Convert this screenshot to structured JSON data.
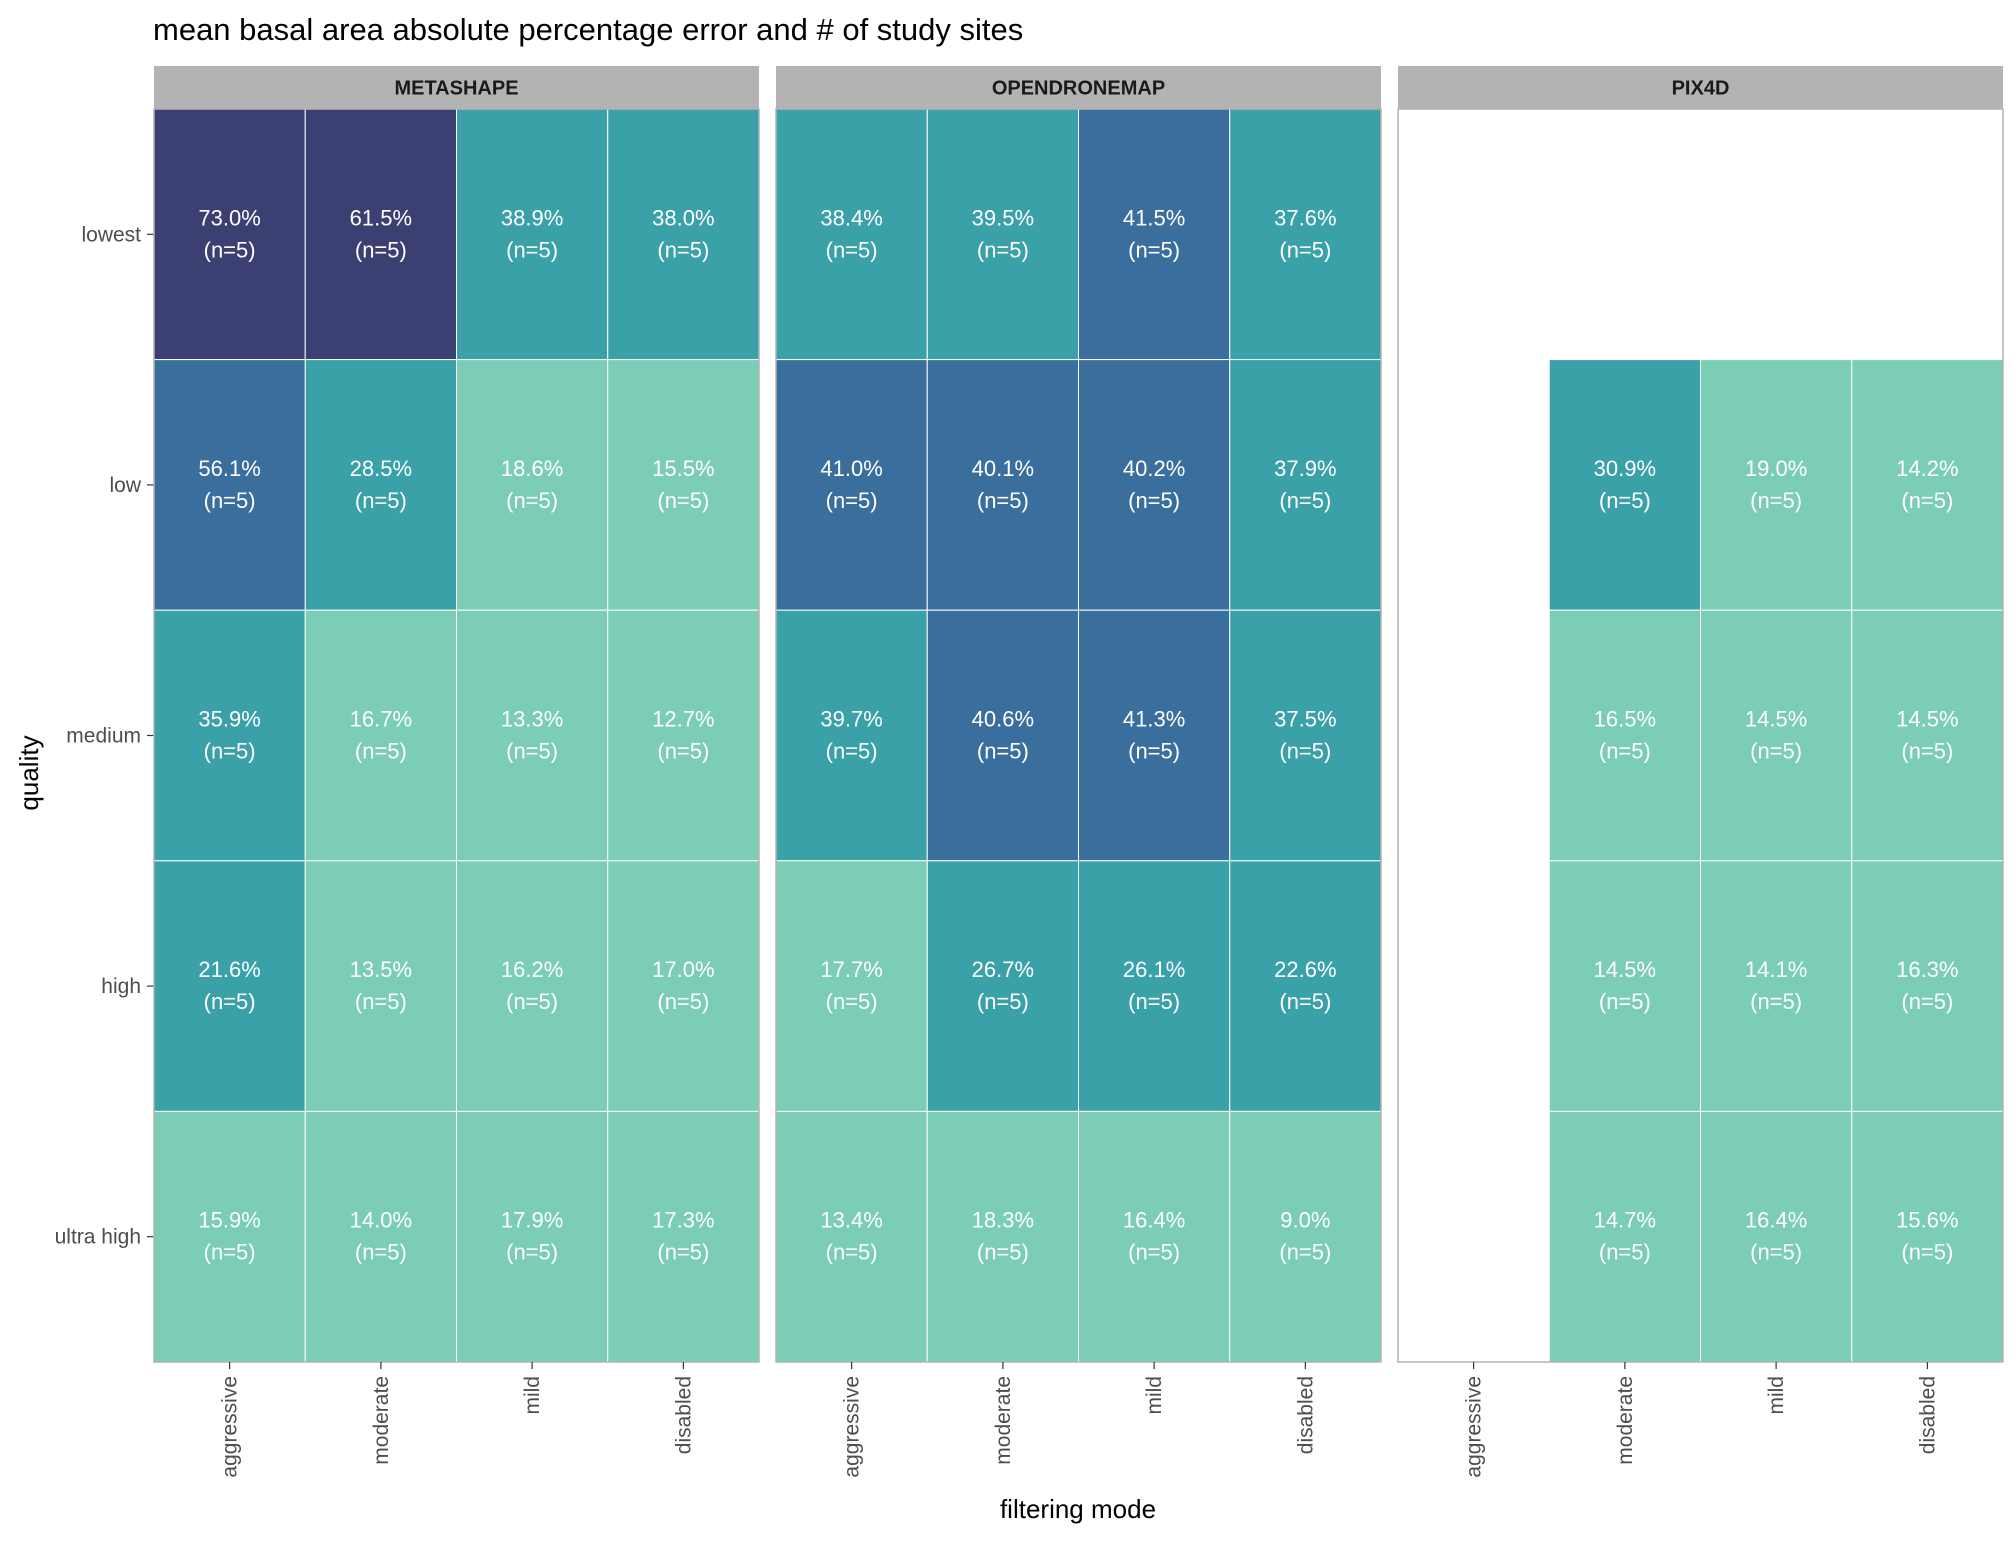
{
  "chart_data": {
    "type": "heatmap",
    "title": "mean basal area absolute percentage error and # of study sites",
    "xlabel": "filtering mode",
    "ylabel": "quality",
    "x_categories": [
      "aggressive",
      "moderate",
      "mild",
      "disabled"
    ],
    "y_categories": [
      "lowest",
      "low",
      "medium",
      "high",
      "ultra high"
    ],
    "legend": "none",
    "colors": {
      "level_1": "#3c3f72",
      "level_2": "#3a6e9c",
      "level_3": "#3ba1a9",
      "level_4": "#7bcdb5",
      "empty": "#ffffff",
      "panel_border": "#b3b3b3",
      "strip_fill": "#b3b3b3",
      "cell_text": "#ffffff",
      "axis_text": "#4d4d4d"
    },
    "facets": [
      {
        "name": "METASHAPE",
        "cells": [
          {
            "quality": "lowest",
            "filter": "aggressive",
            "value": 73.0,
            "label": "73.0%",
            "n": "(n=5)",
            "level": 1
          },
          {
            "quality": "lowest",
            "filter": "moderate",
            "value": 61.5,
            "label": "61.5%",
            "n": "(n=5)",
            "level": 1
          },
          {
            "quality": "lowest",
            "filter": "mild",
            "value": 38.9,
            "label": "38.9%",
            "n": "(n=5)",
            "level": 3
          },
          {
            "quality": "lowest",
            "filter": "disabled",
            "value": 38.0,
            "label": "38.0%",
            "n": "(n=5)",
            "level": 3
          },
          {
            "quality": "low",
            "filter": "aggressive",
            "value": 56.1,
            "label": "56.1%",
            "n": "(n=5)",
            "level": 2
          },
          {
            "quality": "low",
            "filter": "moderate",
            "value": 28.5,
            "label": "28.5%",
            "n": "(n=5)",
            "level": 3
          },
          {
            "quality": "low",
            "filter": "mild",
            "value": 18.6,
            "label": "18.6%",
            "n": "(n=5)",
            "level": 4
          },
          {
            "quality": "low",
            "filter": "disabled",
            "value": 15.5,
            "label": "15.5%",
            "n": "(n=5)",
            "level": 4
          },
          {
            "quality": "medium",
            "filter": "aggressive",
            "value": 35.9,
            "label": "35.9%",
            "n": "(n=5)",
            "level": 3
          },
          {
            "quality": "medium",
            "filter": "moderate",
            "value": 16.7,
            "label": "16.7%",
            "n": "(n=5)",
            "level": 4
          },
          {
            "quality": "medium",
            "filter": "mild",
            "value": 13.3,
            "label": "13.3%",
            "n": "(n=5)",
            "level": 4
          },
          {
            "quality": "medium",
            "filter": "disabled",
            "value": 12.7,
            "label": "12.7%",
            "n": "(n=5)",
            "level": 4
          },
          {
            "quality": "high",
            "filter": "aggressive",
            "value": 21.6,
            "label": "21.6%",
            "n": "(n=5)",
            "level": 3
          },
          {
            "quality": "high",
            "filter": "moderate",
            "value": 13.5,
            "label": "13.5%",
            "n": "(n=5)",
            "level": 4
          },
          {
            "quality": "high",
            "filter": "mild",
            "value": 16.2,
            "label": "16.2%",
            "n": "(n=5)",
            "level": 4
          },
          {
            "quality": "high",
            "filter": "disabled",
            "value": 17.0,
            "label": "17.0%",
            "n": "(n=5)",
            "level": 4
          },
          {
            "quality": "ultra high",
            "filter": "aggressive",
            "value": 15.9,
            "label": "15.9%",
            "n": "(n=5)",
            "level": 4
          },
          {
            "quality": "ultra high",
            "filter": "moderate",
            "value": 14.0,
            "label": "14.0%",
            "n": "(n=5)",
            "level": 4
          },
          {
            "quality": "ultra high",
            "filter": "mild",
            "value": 17.9,
            "label": "17.9%",
            "n": "(n=5)",
            "level": 4
          },
          {
            "quality": "ultra high",
            "filter": "disabled",
            "value": 17.3,
            "label": "17.3%",
            "n": "(n=5)",
            "level": 4
          }
        ]
      },
      {
        "name": "OPENDRONEMAP",
        "cells": [
          {
            "quality": "lowest",
            "filter": "aggressive",
            "value": 38.4,
            "label": "38.4%",
            "n": "(n=5)",
            "level": 3
          },
          {
            "quality": "lowest",
            "filter": "moderate",
            "value": 39.5,
            "label": "39.5%",
            "n": "(n=5)",
            "level": 3
          },
          {
            "quality": "lowest",
            "filter": "mild",
            "value": 41.5,
            "label": "41.5%",
            "n": "(n=5)",
            "level": 2
          },
          {
            "quality": "lowest",
            "filter": "disabled",
            "value": 37.6,
            "label": "37.6%",
            "n": "(n=5)",
            "level": 3
          },
          {
            "quality": "low",
            "filter": "aggressive",
            "value": 41.0,
            "label": "41.0%",
            "n": "(n=5)",
            "level": 2
          },
          {
            "quality": "low",
            "filter": "moderate",
            "value": 40.1,
            "label": "40.1%",
            "n": "(n=5)",
            "level": 2
          },
          {
            "quality": "low",
            "filter": "mild",
            "value": 40.2,
            "label": "40.2%",
            "n": "(n=5)",
            "level": 2
          },
          {
            "quality": "low",
            "filter": "disabled",
            "value": 37.9,
            "label": "37.9%",
            "n": "(n=5)",
            "level": 3
          },
          {
            "quality": "medium",
            "filter": "aggressive",
            "value": 39.7,
            "label": "39.7%",
            "n": "(n=5)",
            "level": 3
          },
          {
            "quality": "medium",
            "filter": "moderate",
            "value": 40.6,
            "label": "40.6%",
            "n": "(n=5)",
            "level": 2
          },
          {
            "quality": "medium",
            "filter": "mild",
            "value": 41.3,
            "label": "41.3%",
            "n": "(n=5)",
            "level": 2
          },
          {
            "quality": "medium",
            "filter": "disabled",
            "value": 37.5,
            "label": "37.5%",
            "n": "(n=5)",
            "level": 3
          },
          {
            "quality": "high",
            "filter": "aggressive",
            "value": 17.7,
            "label": "17.7%",
            "n": "(n=5)",
            "level": 4
          },
          {
            "quality": "high",
            "filter": "moderate",
            "value": 26.7,
            "label": "26.7%",
            "n": "(n=5)",
            "level": 3
          },
          {
            "quality": "high",
            "filter": "mild",
            "value": 26.1,
            "label": "26.1%",
            "n": "(n=5)",
            "level": 3
          },
          {
            "quality": "high",
            "filter": "disabled",
            "value": 22.6,
            "label": "22.6%",
            "n": "(n=5)",
            "level": 3
          },
          {
            "quality": "ultra high",
            "filter": "aggressive",
            "value": 13.4,
            "label": "13.4%",
            "n": "(n=5)",
            "level": 4
          },
          {
            "quality": "ultra high",
            "filter": "moderate",
            "value": 18.3,
            "label": "18.3%",
            "n": "(n=5)",
            "level": 4
          },
          {
            "quality": "ultra high",
            "filter": "mild",
            "value": 16.4,
            "label": "16.4%",
            "n": "(n=5)",
            "level": 4
          },
          {
            "quality": "ultra high",
            "filter": "disabled",
            "value": 9.0,
            "label": "9.0%",
            "n": "(n=5)",
            "level": 4
          }
        ]
      },
      {
        "name": "PIX4D",
        "cells": [
          {
            "quality": "low",
            "filter": "moderate",
            "value": 30.9,
            "label": "30.9%",
            "n": "(n=5)",
            "level": 3
          },
          {
            "quality": "low",
            "filter": "mild",
            "value": 19.0,
            "label": "19.0%",
            "n": "(n=5)",
            "level": 4
          },
          {
            "quality": "low",
            "filter": "disabled",
            "value": 14.2,
            "label": "14.2%",
            "n": "(n=5)",
            "level": 4
          },
          {
            "quality": "medium",
            "filter": "moderate",
            "value": 16.5,
            "label": "16.5%",
            "n": "(n=5)",
            "level": 4
          },
          {
            "quality": "medium",
            "filter": "mild",
            "value": 14.5,
            "label": "14.5%",
            "n": "(n=5)",
            "level": 4
          },
          {
            "quality": "medium",
            "filter": "disabled",
            "value": 14.5,
            "label": "14.5%",
            "n": "(n=5)",
            "level": 4
          },
          {
            "quality": "high",
            "filter": "moderate",
            "value": 14.5,
            "label": "14.5%",
            "n": "(n=5)",
            "level": 4
          },
          {
            "quality": "high",
            "filter": "mild",
            "value": 14.1,
            "label": "14.1%",
            "n": "(n=5)",
            "level": 4
          },
          {
            "quality": "high",
            "filter": "disabled",
            "value": 16.3,
            "label": "16.3%",
            "n": "(n=5)",
            "level": 4
          },
          {
            "quality": "ultra high",
            "filter": "moderate",
            "value": 14.7,
            "label": "14.7%",
            "n": "(n=5)",
            "level": 4
          },
          {
            "quality": "ultra high",
            "filter": "mild",
            "value": 16.4,
            "label": "16.4%",
            "n": "(n=5)",
            "level": 4
          },
          {
            "quality": "ultra high",
            "filter": "disabled",
            "value": 15.6,
            "label": "15.6%",
            "n": "(n=5)",
            "level": 4
          }
        ]
      }
    ]
  }
}
